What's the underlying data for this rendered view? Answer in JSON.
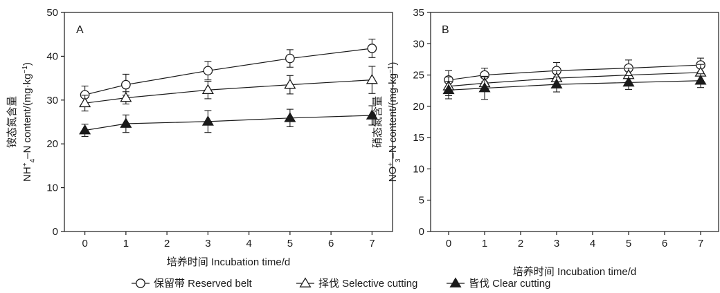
{
  "chart_data": [
    {
      "type": "line",
      "panel_label": "A",
      "ylabel_cn": "铵态氮含量",
      "ylabel_en": "content/(mg·kg",
      "ylabel_species": "NH",
      "ylabel_sub": "4",
      "ylabel_sup": "+",
      "ylabel_unit_sup": "−1",
      "xlabel": "培养时间 Incubation time/d",
      "xlim": [
        -0.5,
        7.5
      ],
      "ylim": [
        0,
        50
      ],
      "xticks": [
        0,
        1,
        2,
        3,
        4,
        5,
        6,
        7
      ],
      "yticks": [
        0,
        10,
        20,
        30,
        40,
        50
      ],
      "x": [
        0,
        1,
        3,
        5,
        7
      ],
      "series": [
        {
          "name": "保留带 Reserved belt",
          "marker": "circle-open",
          "values": [
            31.2,
            33.5,
            36.7,
            39.5,
            41.8
          ],
          "errors": [
            2.0,
            2.4,
            2.1,
            2.0,
            2.1
          ]
        },
        {
          "name": "择伐 Selective cutting",
          "marker": "triangle-open",
          "values": [
            29.3,
            30.5,
            32.3,
            33.5,
            34.6
          ],
          "errors": [
            1.8,
            1.4,
            2.0,
            2.1,
            3.1
          ]
        },
        {
          "name": "皆伐 Clear cutting",
          "marker": "triangle-filled",
          "values": [
            23.1,
            24.6,
            25.1,
            25.9,
            26.5
          ],
          "errors": [
            1.4,
            2.0,
            2.5,
            2.0,
            2.2
          ]
        }
      ]
    },
    {
      "type": "line",
      "panel_label": "B",
      "ylabel_cn": "硝态氮含量",
      "ylabel_en": "content/(mg·kg",
      "ylabel_species": "NO",
      "ylabel_sub": "3",
      "ylabel_sup": "+",
      "ylabel_unit_sup": "−1",
      "xlabel": "培养时间 Incubation time/d",
      "xlim": [
        -0.5,
        7.5
      ],
      "ylim": [
        0,
        35
      ],
      "xticks": [
        0,
        1,
        2,
        3,
        4,
        5,
        6,
        7
      ],
      "yticks": [
        0,
        5,
        10,
        15,
        20,
        25,
        30,
        35
      ],
      "x": [
        0,
        1,
        3,
        5,
        7
      ],
      "series": [
        {
          "name": "保留带 Reserved belt",
          "marker": "circle-open",
          "values": [
            24.2,
            25.0,
            25.7,
            26.1,
            26.6
          ],
          "errors": [
            1.5,
            1.1,
            1.3,
            1.3,
            1.1
          ]
        },
        {
          "name": "择伐 Selective cutting",
          "marker": "triangle-open",
          "values": [
            23.2,
            23.7,
            24.5,
            25.0,
            25.4
          ],
          "errors": [
            1.5,
            1.1,
            1.2,
            1.1,
            1.3
          ]
        },
        {
          "name": "皆伐 Clear cutting",
          "marker": "triangle-filled",
          "values": [
            22.6,
            22.9,
            23.5,
            23.8,
            24.1
          ],
          "errors": [
            1.4,
            1.8,
            1.2,
            1.1,
            1.1
          ]
        }
      ]
    }
  ],
  "legend": {
    "placement": "bottom",
    "items": [
      {
        "label": "保留带 Reserved belt",
        "marker": "circle-open"
      },
      {
        "label": "择伐 Selective cutting",
        "marker": "triangle-open"
      },
      {
        "label": "皆伐 Clear cutting",
        "marker": "triangle-filled"
      }
    ]
  },
  "colors": {
    "ink": "#1a1a1a",
    "background": "#ffffff"
  }
}
